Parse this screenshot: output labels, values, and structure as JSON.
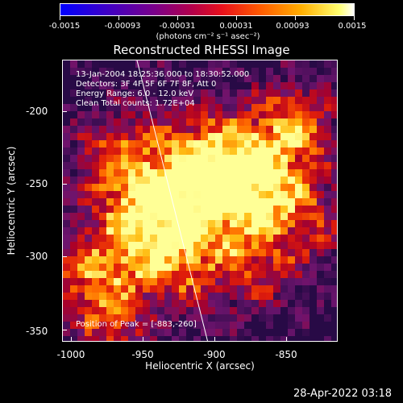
{
  "colorbar": {
    "tick_labels": [
      "-0.0015",
      "-0.00093",
      "-0.00031",
      "0.00031",
      "0.00093",
      "0.0015"
    ],
    "units": "(photons cm⁻² s⁻¹ asec⁻²)"
  },
  "title": "Reconstructed RHESSI Image",
  "info": {
    "time": "13-Jan-2004 18:25:36.000 to 18:30:52.000",
    "detectors": "Detectors: 3F 4F 5F 6F 7F 8F, Att 0",
    "energy": "Energy Range: 6.0 - 12.0 keV",
    "method": "Clean     Total counts: 1.72E+04"
  },
  "peak": "Position of Peak = [-883,-260]",
  "axes": {
    "xlabel": "Heliocentric X (arcsec)",
    "ylabel": "Heliocentric Y (arcsec)",
    "xticks": [
      "-1000",
      "-950",
      "-900",
      "-850"
    ],
    "yticks": [
      "-200",
      "-250",
      "-300",
      "-350"
    ]
  },
  "timestamp": "28-Apr-2022 03:18"
}
